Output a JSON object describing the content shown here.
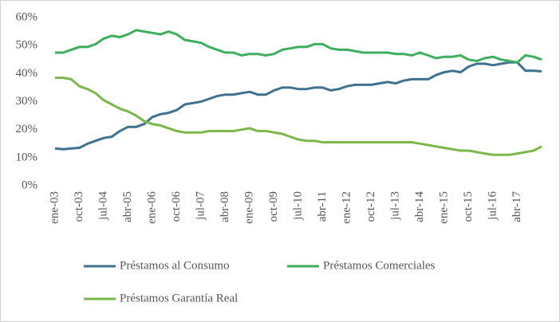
{
  "chart_data": {
    "type": "line",
    "categories": [
      "ene-03",
      null,
      null,
      "oct-03",
      null,
      null,
      "jul-04",
      null,
      null,
      "abr-05",
      null,
      null,
      "ene-06",
      null,
      null,
      "oct-06",
      null,
      null,
      "jul-07",
      null,
      null,
      "abr-08",
      null,
      null,
      "ene-09",
      null,
      null,
      "oct-09",
      null,
      null,
      "jul-10",
      null,
      null,
      "abr-11",
      null,
      null,
      "ene-12",
      null,
      null,
      "oct-12",
      null,
      null,
      "jul-13",
      null,
      null,
      "abr-14",
      null,
      null,
      "ene-15",
      null,
      null,
      "oct-15",
      null,
      null,
      "jul-16",
      null,
      null,
      "abr-17",
      null,
      null,
      null
    ],
    "series": [
      {
        "name": "Préstamos al Consumo",
        "color": "#3f7190",
        "values": [
          13.3,
          13,
          13.3,
          13.5,
          15,
          16,
          17,
          17.5,
          19.5,
          21,
          21,
          22,
          24.5,
          25.5,
          26,
          27,
          29,
          29.5,
          30,
          31,
          32,
          32.5,
          32.5,
          33,
          33.5,
          32.5,
          32.5,
          34,
          35,
          35,
          34.5,
          34.5,
          35,
          35,
          34,
          34.5,
          35.5,
          36,
          36,
          36,
          36.5,
          37,
          36.5,
          37.5,
          38,
          38,
          38,
          39.5,
          40.5,
          41,
          40.5,
          42.5,
          43.5,
          43.5,
          43,
          43.5,
          44,
          44,
          41,
          41,
          40.8
        ]
      },
      {
        "name": "Préstamos Comerciales",
        "color": "#3cae5c",
        "values": [
          47.5,
          47.5,
          48.5,
          49.5,
          49.5,
          50.5,
          52.5,
          53.5,
          53,
          54,
          55.5,
          55,
          54.5,
          54,
          55,
          54,
          52,
          51.5,
          51,
          49.5,
          48.5,
          47.5,
          47.5,
          46.5,
          47,
          47,
          46.5,
          47,
          48.5,
          49,
          49.5,
          49.5,
          50.5,
          50.5,
          49,
          48.5,
          48.5,
          48,
          47.5,
          47.5,
          47.5,
          47.5,
          47,
          47,
          46.5,
          47.5,
          46.5,
          45.5,
          46,
          46,
          46.5,
          45,
          44.5,
          45.5,
          46,
          45,
          44.5,
          44,
          46.5,
          46,
          45
        ]
      },
      {
        "name": "Préstamos Garantía Real",
        "color": "#7bb84a",
        "values": [
          38.5,
          38.5,
          38,
          35.5,
          34.5,
          33,
          30.5,
          29,
          27.5,
          26.5,
          25,
          23,
          22,
          21.5,
          20.5,
          19.5,
          19,
          19,
          19,
          19.5,
          19.5,
          19.5,
          19.5,
          20,
          20.5,
          19.5,
          19.5,
          19,
          18.5,
          17.5,
          16.5,
          16,
          16,
          15.5,
          15.5,
          15.5,
          15.5,
          15.5,
          15.5,
          15.5,
          15.5,
          15.5,
          15.5,
          15.5,
          15.5,
          15,
          14.5,
          14,
          13.5,
          13,
          12.5,
          12.5,
          12,
          11.5,
          11,
          11,
          11,
          11.5,
          12,
          12.5,
          14
        ]
      }
    ],
    "ylim": [
      0,
      60
    ],
    "yticks": [
      {
        "value": 0,
        "label": "0%"
      },
      {
        "value": 10,
        "label": "10%"
      },
      {
        "value": 20,
        "label": "20%"
      },
      {
        "value": 30,
        "label": "30%"
      },
      {
        "value": 40,
        "label": "40%"
      },
      {
        "value": 50,
        "label": "50%"
      },
      {
        "value": 60,
        "label": "60%"
      }
    ],
    "grid": false
  }
}
